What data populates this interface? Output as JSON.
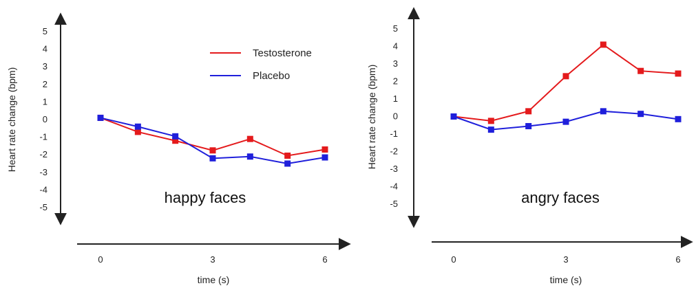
{
  "chart_data": [
    {
      "type": "line",
      "annotation": "happy faces",
      "xlabel": "time (s)",
      "ylabel": "Heart rate change (bpm)",
      "xlim": [
        0,
        6
      ],
      "ylim": [
        -5,
        5
      ],
      "xticks": [
        "0",
        "3",
        "6"
      ],
      "yticks": [
        "5",
        "4",
        "3",
        "2",
        "1",
        "0",
        "-1",
        "-2",
        "-3",
        "-4",
        "-5"
      ],
      "x": [
        0,
        1,
        2,
        3,
        4,
        5,
        6
      ],
      "grid": false,
      "legend_position": "top-right",
      "series": [
        {
          "name": "Testosterone",
          "color": "#e41a1c",
          "values": [
            0.1,
            -0.7,
            -1.2,
            -1.75,
            -1.1,
            -2.05,
            -1.7
          ]
        },
        {
          "name": "Placebo",
          "color": "#1f1fdb",
          "values": [
            0.1,
            -0.4,
            -0.95,
            -2.2,
            -2.1,
            -2.5,
            -2.15
          ]
        }
      ]
    },
    {
      "type": "line",
      "annotation": "angry faces",
      "xlabel": "time (s)",
      "ylabel": "Heart rate change (bpm)",
      "xlim": [
        0,
        6
      ],
      "ylim": [
        -5,
        5
      ],
      "xticks": [
        "0",
        "3",
        "6"
      ],
      "yticks": [
        "5",
        "4",
        "3",
        "2",
        "1",
        "0",
        "-1",
        "-2",
        "-3",
        "-4",
        "-5"
      ],
      "x": [
        0,
        1,
        2,
        3,
        4,
        5,
        6
      ],
      "grid": false,
      "series": [
        {
          "name": "",
          "color": "#e41a1c",
          "values": [
            0.0,
            -0.25,
            0.3,
            2.3,
            4.1,
            2.6,
            2.45
          ]
        },
        {
          "name": "",
          "color": "#1f1fdb",
          "values": [
            0.0,
            -0.75,
            -0.55,
            -0.3,
            0.3,
            0.15,
            -0.15
          ]
        }
      ]
    }
  ]
}
